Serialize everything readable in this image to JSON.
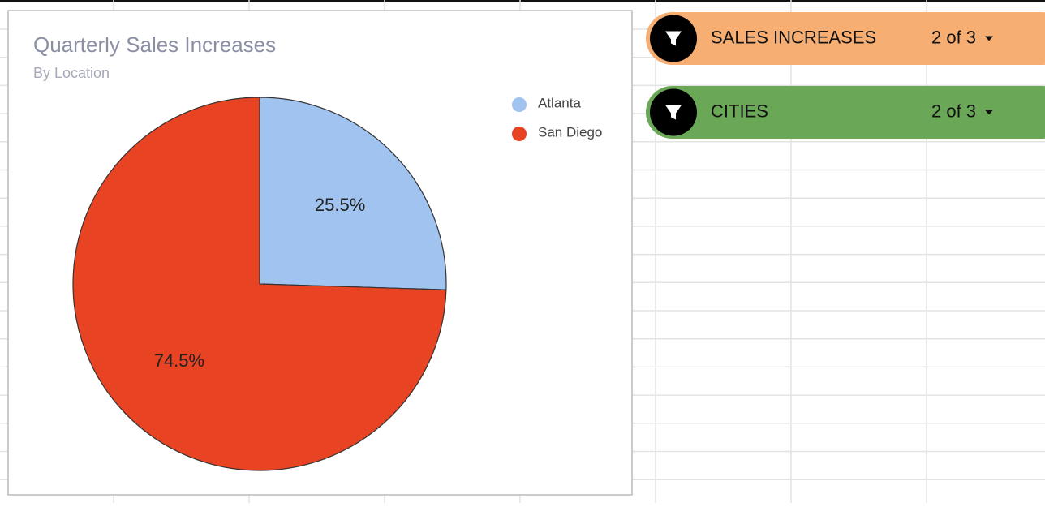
{
  "chart_data": {
    "type": "pie",
    "title": "Quarterly Sales Increases",
    "subtitle": "By Location",
    "categories": [
      "Atlanta",
      "San Diego"
    ],
    "values": [
      25.5,
      74.5
    ],
    "value_labels": [
      "25.5%",
      "74.5%"
    ],
    "colors": [
      "#a0c3f0",
      "#e84322"
    ],
    "legend": "top-right"
  },
  "filters": [
    {
      "label": "SALES INCREASES",
      "status": "2 of 3",
      "color": "#f7ae72"
    },
    {
      "label": "CITIES",
      "status": "2 of 3",
      "color": "#6aa858"
    }
  ]
}
